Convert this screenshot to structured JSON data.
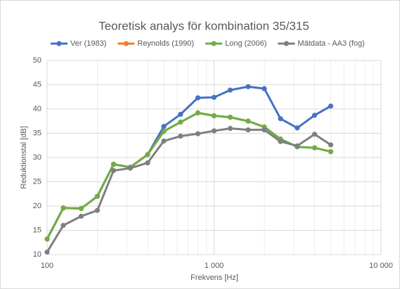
{
  "chart_data": {
    "type": "line",
    "title": "Teoretisk analys för kombination 35/315",
    "x_label": "Frekvens [Hz]",
    "y_label": "Reduktionstal [dB]",
    "x": [
      100,
      125,
      160,
      200,
      250,
      315,
      400,
      500,
      630,
      800,
      1000,
      1250,
      1600,
      2000,
      2500,
      3150,
      4000,
      5000
    ],
    "series": [
      {
        "name": "Ver (1983)",
        "color": "#4472c4",
        "values": [
          13.2,
          19.6,
          19.5,
          22.0,
          28.6,
          28.0,
          30.6,
          36.4,
          38.9,
          42.3,
          42.4,
          43.9,
          44.6,
          44.2,
          38.0,
          36.1,
          38.7,
          40.6
        ]
      },
      {
        "name": "Reynolds (1990)",
        "color": "#ed7d31",
        "values": [
          13.2,
          19.6,
          19.5,
          22.0,
          28.6,
          28.0,
          30.6,
          35.4,
          37.3,
          39.2,
          38.6,
          38.3,
          37.5,
          36.3,
          33.8,
          32.2,
          32.0,
          31.2
        ]
      },
      {
        "name": "Long (2006)",
        "color": "#70ad47",
        "values": [
          13.2,
          19.6,
          19.5,
          22.0,
          28.6,
          28.0,
          30.6,
          35.4,
          37.3,
          39.2,
          38.6,
          38.3,
          37.5,
          36.3,
          33.8,
          32.2,
          32.0,
          31.2
        ]
      },
      {
        "name": "Mätdata - AA3 (fog)",
        "color": "#7f7f7f",
        "values": [
          10.5,
          16.0,
          17.9,
          19.1,
          27.3,
          27.8,
          28.9,
          33.4,
          34.4,
          34.9,
          35.5,
          36.0,
          35.7,
          35.7,
          33.3,
          32.4,
          34.8,
          32.6
        ]
      }
    ],
    "xlim": [
      100,
      10000
    ],
    "xticks": [
      100,
      {
        "value": 1000,
        "label": "1 000"
      },
      {
        "value": 10000,
        "label": "10 000"
      }
    ],
    "xminorticks": [
      200,
      300,
      400,
      500,
      600,
      700,
      800,
      900,
      2000,
      3000,
      4000,
      5000,
      6000,
      7000,
      8000,
      9000
    ],
    "x_log": true,
    "ylim": [
      10,
      50
    ],
    "yticks": [
      10,
      15,
      20,
      25,
      30,
      35,
      40,
      45,
      50
    ],
    "grid": true,
    "legend": "top"
  }
}
